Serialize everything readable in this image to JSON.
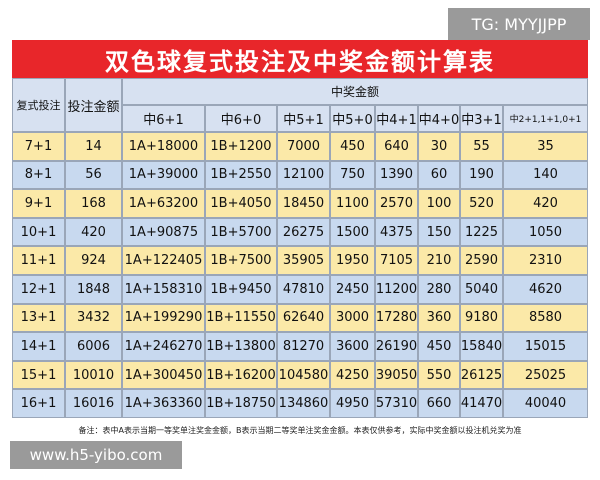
{
  "watermark_top": "TG: MYYJJPP",
  "title": "双色球复式投注及中奖金额计算表",
  "table": {
    "header": [
      "复式投注",
      "投注金额",
      "中奖金额"
    ],
    "subheader": [
      "中6+1",
      "中6+0",
      "中5+1",
      "中5+0",
      "中4+1",
      "中4+0",
      "中3+1",
      "中2+1,1+1,0+1"
    ],
    "rows": [
      [
        "7+1",
        14,
        "1A+18000",
        "1B+1200",
        7000,
        450,
        640,
        30,
        55,
        35
      ],
      [
        "8+1",
        56,
        "1A+39000",
        "1B+2550",
        12100,
        750,
        1390,
        60,
        190,
        140
      ],
      [
        "9+1",
        168,
        "1A+63200",
        "1B+4050",
        18450,
        1100,
        2570,
        100,
        520,
        420
      ],
      [
        "10+1",
        420,
        "1A+90875",
        "1B+5700",
        26275,
        1500,
        4375,
        150,
        1225,
        1050
      ],
      [
        "11+1",
        924,
        "1A+122405",
        "1B+7500",
        35905,
        1950,
        7105,
        210,
        2590,
        2310
      ],
      [
        "12+1",
        1848,
        "1A+158310",
        "1B+9450",
        47810,
        2450,
        11200,
        280,
        5040,
        4620
      ],
      [
        "13+1",
        3432,
        "1A+199290",
        "1B+11550",
        62640,
        3000,
        17280,
        360,
        9180,
        8580
      ],
      [
        "14+1",
        6006,
        "1A+246270",
        "1B+13800",
        81270,
        3600,
        26190,
        450,
        15840,
        15015
      ],
      [
        "15+1",
        10010,
        "1A+300450",
        "1B+16200",
        104580,
        4250,
        39050,
        550,
        26125,
        25025
      ],
      [
        "16+1",
        16016,
        "1A+363360",
        "1B+18750",
        134860,
        4950,
        57310,
        660,
        41470,
        40040
      ]
    ]
  },
  "note": "备注：表中A表示当期一等奖单注奖金金额，B表示当期二等奖单注奖金金额。本表仅供参考，实际中奖金额以投注机兑奖为准",
  "watermark_bottom": "www.h5-yibo.com"
}
